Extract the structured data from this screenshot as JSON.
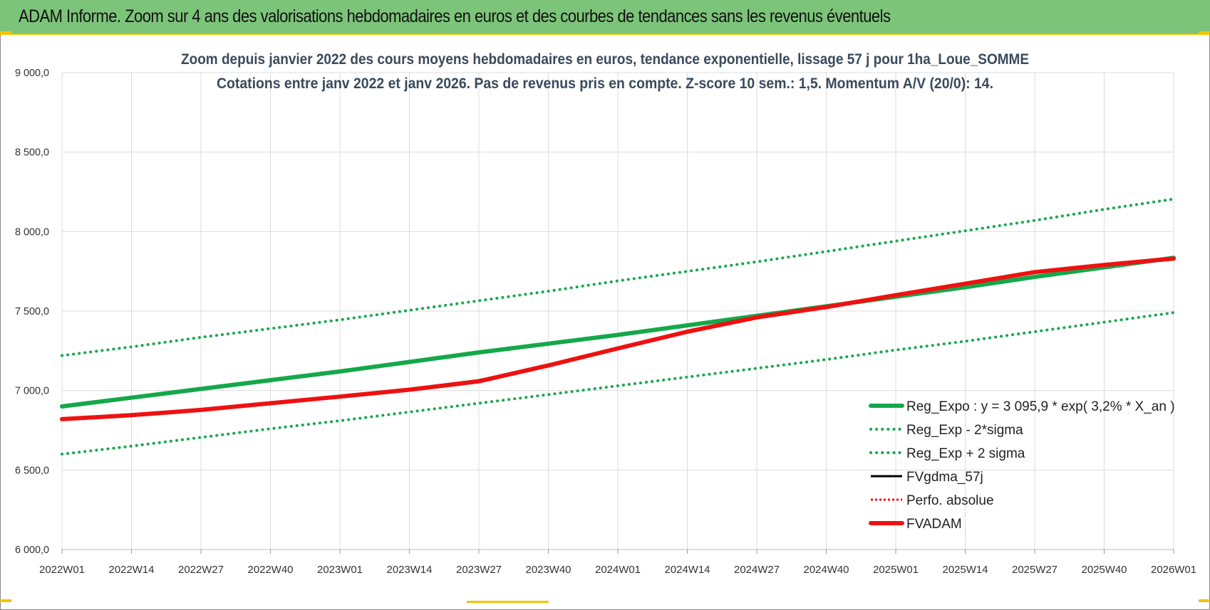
{
  "header": {
    "title": "ADAM Informe. Zoom sur 4 ans des valorisations hebdomadaires en euros et des courbes de tendances sans les revenus éventuels"
  },
  "colors": {
    "banner": "#7cc47a",
    "accent_yellow": "#f2c400",
    "green": "#14a84a",
    "red": "#ee1111",
    "black": "#000000",
    "grid": "#dcdcdc"
  },
  "chart_data": {
    "type": "line",
    "title": "Zoom depuis janvier 2022 des cours moyens hebdomadaires en euros, tendance exponentielle, lissage 57 j pour 1ha_Loue_SOMME",
    "subtitle": "Cotations entre janv 2022 et janv 2026. Pas de revenus pris en compte. Z-score 10 sem.: 1,5. Momentum A/V (20/0): 14.",
    "xlabel": "",
    "ylabel": "",
    "x_ticks": [
      "2022W01",
      "2022W14",
      "2022W27",
      "2022W40",
      "2023W01",
      "2023W14",
      "2023W27",
      "2023W40",
      "2024W01",
      "2024W14",
      "2024W27",
      "2024W40",
      "2025W01",
      "2025W14",
      "2025W27",
      "2025W40",
      "2026W01"
    ],
    "y_ticks": [
      "6 000,0",
      "6 500,0",
      "7 000,0",
      "7 500,0",
      "8 000,0",
      "8 500,0",
      "9 000,0"
    ],
    "ylim": [
      6000,
      9000
    ],
    "grid": true,
    "legend_position": "bottom-right",
    "series": [
      {
        "name": "Reg_Expo : y = 3 095,9 * exp( 3,2% * X_an )",
        "style": "solid-thick",
        "color": "#14a84a",
        "values": [
          6900,
          6955,
          7010,
          7065,
          7120,
          7180,
          7240,
          7295,
          7350,
          7410,
          7470,
          7530,
          7590,
          7650,
          7715,
          7775,
          7835
        ]
      },
      {
        "name": "Reg_Exp - 2*sigma",
        "style": "dotted",
        "color": "#14a84a",
        "values": [
          6600,
          6650,
          6705,
          6760,
          6810,
          6865,
          6920,
          6975,
          7030,
          7085,
          7140,
          7195,
          7255,
          7310,
          7370,
          7430,
          7490
        ]
      },
      {
        "name": "Reg_Exp + 2 sigma",
        "style": "dotted",
        "color": "#14a84a",
        "values": [
          7220,
          7275,
          7335,
          7390,
          7445,
          7505,
          7565,
          7625,
          7690,
          7750,
          7810,
          7875,
          7940,
          8005,
          8070,
          8140,
          8205
        ]
      },
      {
        "name": "FVgdma_57j",
        "style": "solid",
        "color": "#000000",
        "values": [
          6820,
          6845,
          6880,
          6920,
          6965,
          7010,
          7065,
          7160,
          7265,
          7370,
          7460,
          7525,
          7600,
          7670,
          7745,
          7790,
          7830
        ]
      },
      {
        "name": "Perfo. absolue",
        "style": "dotted-red",
        "color": "#ee1111",
        "values": []
      },
      {
        "name": "FVADAM",
        "style": "solid-thick",
        "color": "#ee1111",
        "values": [
          6820,
          6845,
          6878,
          6920,
          6962,
          7005,
          7058,
          7158,
          7265,
          7370,
          7460,
          7525,
          7600,
          7672,
          7745,
          7790,
          7830
        ]
      }
    ]
  }
}
